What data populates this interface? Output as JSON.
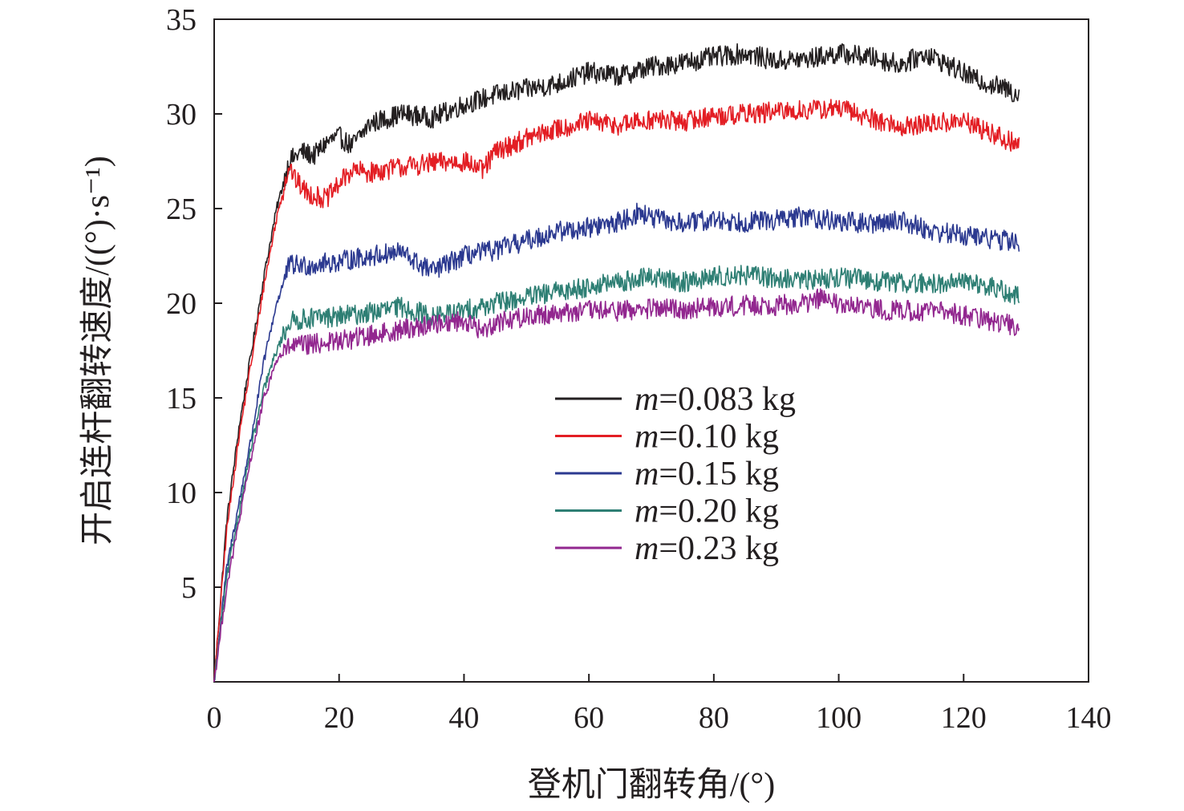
{
  "chart_data": {
    "type": "line",
    "xlabel": "登机门翻转角/(°)",
    "ylabel": "开启连杆翻转速度/((°)·s⁻¹)",
    "xlim": [
      0,
      140
    ],
    "ylim": [
      0,
      35
    ],
    "xticks": [
      0,
      20,
      40,
      60,
      80,
      100,
      120,
      140
    ],
    "yticks": [
      5,
      10,
      15,
      20,
      25,
      30,
      35
    ],
    "xtick_labels": [
      "0",
      "20",
      "40",
      "60",
      "80",
      "100",
      "120",
      "140"
    ],
    "ytick_labels": [
      "5",
      "10",
      "15",
      "20",
      "25",
      "30",
      "35"
    ],
    "legend_position": "center-right",
    "grid": false,
    "series": [
      {
        "name": "m=0.083 kg",
        "var": "m",
        "value_label": "=0.083 kg",
        "color": "#231f20",
        "x": [
          0,
          2,
          4,
          6,
          8,
          10,
          12,
          14,
          16,
          18,
          20,
          22,
          25,
          30,
          35,
          40,
          45,
          50,
          55,
          60,
          65,
          70,
          75,
          80,
          85,
          90,
          95,
          100,
          105,
          110,
          114,
          118,
          122,
          126,
          129
        ],
        "y": [
          0,
          8.5,
          13.5,
          17.5,
          21.5,
          25.0,
          27.5,
          28.0,
          27.8,
          28.5,
          28.8,
          28.3,
          29.5,
          30.0,
          29.8,
          30.5,
          31.0,
          31.3,
          31.6,
          32.2,
          32.0,
          32.5,
          32.7,
          33.0,
          33.2,
          32.8,
          32.9,
          33.2,
          33.0,
          32.6,
          33.2,
          32.5,
          31.8,
          31.4,
          31.0
        ]
      },
      {
        "name": "m=0.10 kg",
        "var": "m",
        "value_label": "=0.10 kg",
        "color": "#e31e24",
        "x": [
          0,
          2,
          4,
          6,
          8,
          10,
          12,
          13,
          15,
          18,
          20,
          22,
          25,
          30,
          35,
          40,
          43,
          45,
          50,
          55,
          60,
          65,
          70,
          75,
          80,
          85,
          90,
          95,
          100,
          105,
          110,
          115,
          120,
          125,
          129
        ],
        "y": [
          0,
          8.0,
          13.0,
          17.0,
          21.0,
          24.5,
          27.3,
          26.5,
          25.8,
          25.5,
          26.3,
          27.0,
          26.9,
          27.2,
          27.4,
          27.5,
          27.0,
          28.0,
          28.7,
          29.2,
          29.6,
          29.4,
          29.7,
          29.6,
          29.9,
          30.0,
          30.1,
          30.2,
          30.3,
          29.8,
          29.3,
          29.5,
          29.6,
          28.9,
          28.3
        ]
      },
      {
        "name": "m=0.15 kg",
        "var": "m",
        "value_label": "=0.15 kg",
        "color": "#2b3990",
        "x": [
          0,
          2,
          4,
          6,
          8,
          10,
          11,
          12,
          15,
          20,
          25,
          30,
          33,
          35,
          40,
          45,
          50,
          55,
          60,
          65,
          68,
          70,
          75,
          80,
          85,
          90,
          95,
          100,
          105,
          110,
          115,
          120,
          125,
          129
        ],
        "y": [
          0,
          6.0,
          9.5,
          13.0,
          17.0,
          20.0,
          21.0,
          22.0,
          22.0,
          22.2,
          22.5,
          22.7,
          22.0,
          21.7,
          22.5,
          22.8,
          23.3,
          23.8,
          24.0,
          24.3,
          24.8,
          24.5,
          24.2,
          24.4,
          24.3,
          24.4,
          24.6,
          24.3,
          24.2,
          24.4,
          23.8,
          23.6,
          23.4,
          23.2
        ]
      },
      {
        "name": "m=0.20 kg",
        "var": "m",
        "value_label": "=0.20 kg",
        "color": "#2e7f74",
        "x": [
          0,
          2,
          4,
          6,
          8,
          10,
          12,
          15,
          20,
          25,
          30,
          35,
          40,
          45,
          50,
          55,
          60,
          65,
          70,
          75,
          80,
          85,
          90,
          95,
          100,
          105,
          110,
          115,
          120,
          125,
          129
        ],
        "y": [
          0,
          5.5,
          9.0,
          12.5,
          15.5,
          17.5,
          19.0,
          19.2,
          19.3,
          19.5,
          19.8,
          19.3,
          19.6,
          20.0,
          20.3,
          20.6,
          20.9,
          21.1,
          21.4,
          21.1,
          21.4,
          21.5,
          21.3,
          21.2,
          21.4,
          21.2,
          21.1,
          21.0,
          21.2,
          20.8,
          20.3
        ]
      },
      {
        "name": "m=0.23 kg",
        "var": "m",
        "value_label": "=0.23 kg",
        "color": "#92278f",
        "x": [
          0,
          2,
          4,
          6,
          8,
          10,
          12,
          15,
          20,
          25,
          30,
          35,
          40,
          43,
          45,
          50,
          55,
          60,
          65,
          70,
          75,
          80,
          85,
          90,
          95,
          97,
          100,
          105,
          110,
          115,
          120,
          125,
          129
        ],
        "y": [
          0,
          5.0,
          8.5,
          12.0,
          15.0,
          17.0,
          17.7,
          17.8,
          18.0,
          18.3,
          18.6,
          18.9,
          19.1,
          18.5,
          19.0,
          19.3,
          19.5,
          19.6,
          19.6,
          19.7,
          19.7,
          19.8,
          19.9,
          19.9,
          20.0,
          20.3,
          19.9,
          19.7,
          19.6,
          19.6,
          19.4,
          19.0,
          18.8
        ]
      }
    ]
  }
}
